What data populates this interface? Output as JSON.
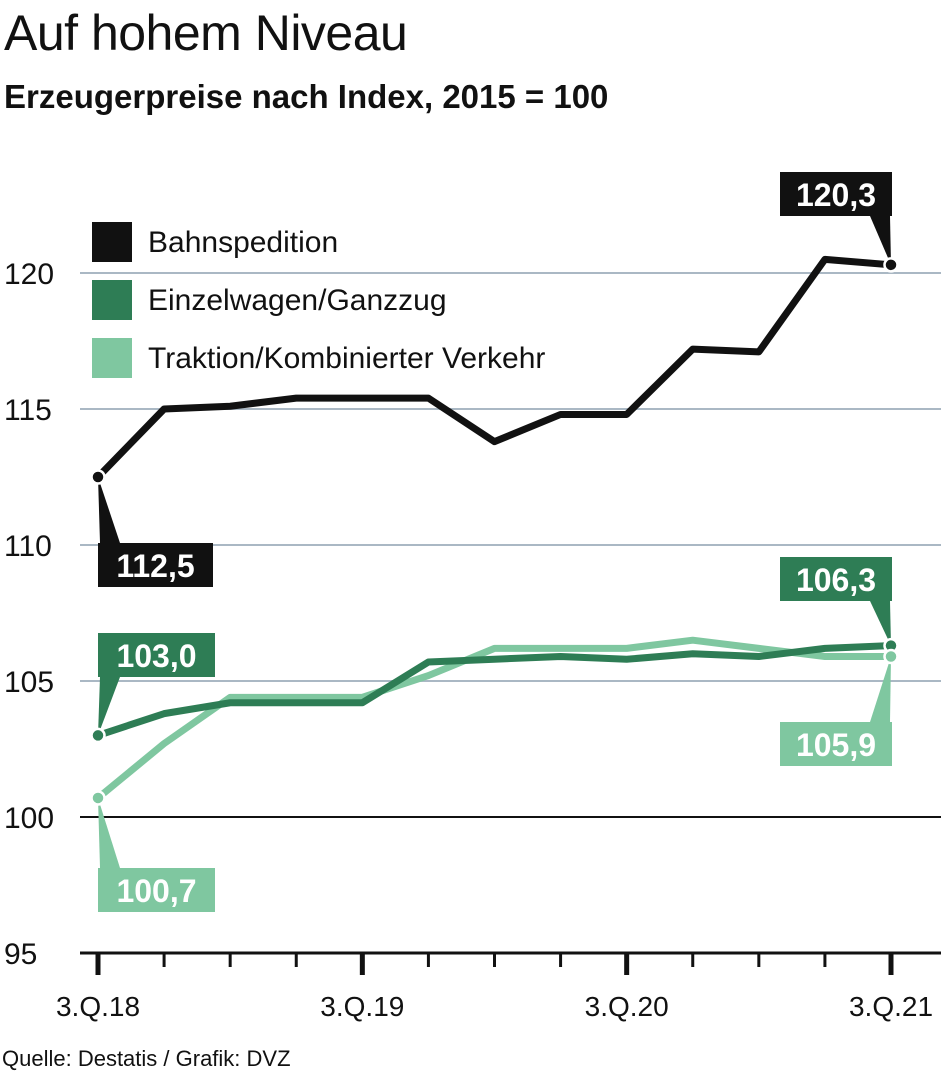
{
  "header": {
    "title": "Auf hohem Niveau",
    "subtitle": "Erzeugerpreise nach Index, 2015 = 100"
  },
  "footer": {
    "source": "Quelle: Destatis / Grafik: DVZ"
  },
  "colors": {
    "bahnspedition": "#111111",
    "einzelwagen": "#2e7d55",
    "traktion": "#7fc7a0",
    "grid": "#aab8c4"
  },
  "chart_data": {
    "type": "line",
    "title": "Auf hohem Niveau",
    "subtitle": "Erzeugerpreise nach Index, 2015 = 100",
    "ylim": [
      95,
      122
    ],
    "y_ticks": [
      "95",
      "100",
      "105",
      "110",
      "115",
      "120"
    ],
    "x_tick_labels": [
      {
        "index": 0,
        "label": "3.Q.18"
      },
      {
        "index": 4,
        "label": "3.Q.19"
      },
      {
        "index": 8,
        "label": "3.Q.20"
      },
      {
        "index": 12,
        "label": "3.Q.21"
      }
    ],
    "x_count": 13,
    "grid": true,
    "legend_position": "top-left",
    "series": [
      {
        "name": "Bahnspedition",
        "color_key": "bahnspedition",
        "values": [
          112.5,
          115.0,
          115.1,
          115.4,
          115.4,
          115.4,
          113.8,
          114.8,
          114.8,
          117.2,
          117.1,
          120.5,
          120.3
        ],
        "start_label": "112,5",
        "end_label": "120,3"
      },
      {
        "name": "Einzelwagen/Ganzzug",
        "color_key": "einzelwagen",
        "values": [
          103.0,
          103.8,
          104.2,
          104.2,
          104.2,
          105.7,
          105.8,
          105.9,
          105.8,
          106.0,
          105.9,
          106.2,
          106.3
        ],
        "start_label": "103,0",
        "end_label": "106,3"
      },
      {
        "name": "Traktion/Kombinierter Verkehr",
        "color_key": "traktion",
        "values": [
          100.7,
          102.7,
          104.4,
          104.4,
          104.4,
          105.2,
          106.2,
          106.2,
          106.2,
          106.5,
          106.2,
          105.9,
          105.9
        ],
        "start_label": "100,7",
        "end_label": "105,9"
      }
    ]
  }
}
